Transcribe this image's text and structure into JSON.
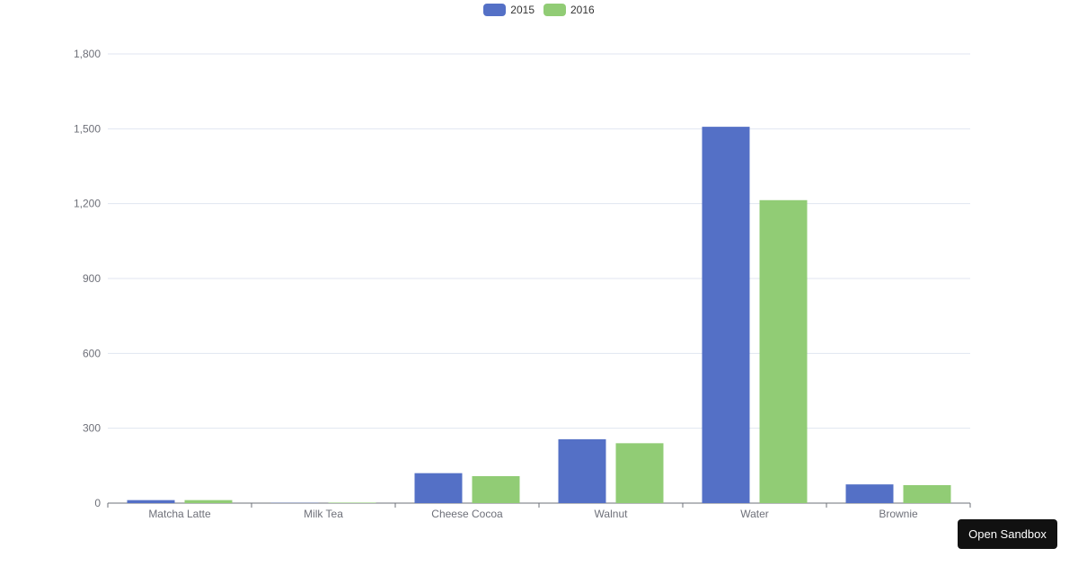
{
  "chart_data": {
    "type": "bar",
    "categories": [
      "Matcha Latte",
      "Milk Tea",
      "Cheese Cocoa",
      "Walnut",
      "Water",
      "Brownie"
    ],
    "series": [
      {
        "name": "2015",
        "values": [
          12,
          1,
          120,
          256,
          1508,
          75
        ],
        "color": "#5470c6"
      },
      {
        "name": "2016",
        "values": [
          12,
          2,
          108,
          240,
          1214,
          72
        ],
        "color": "#91cc75"
      }
    ],
    "ylim": [
      0,
      1800
    ],
    "yticks": [
      0,
      300,
      600,
      900,
      1200,
      1500,
      1800
    ],
    "ytick_labels": [
      "0",
      "300",
      "600",
      "900",
      "1,200",
      "1,500",
      "1,800"
    ],
    "grid": true,
    "legend_position": "top-center"
  },
  "legend": {
    "items": [
      "2015",
      "2016"
    ],
    "colors": [
      "#5470c6",
      "#91cc75"
    ]
  },
  "sandbox": {
    "label": "Open Sandbox"
  }
}
